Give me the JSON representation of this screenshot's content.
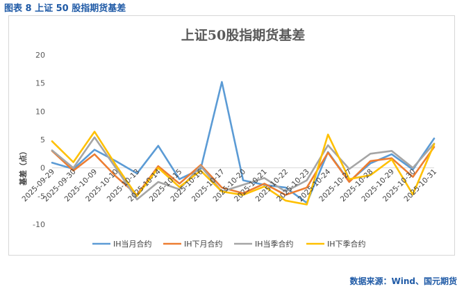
{
  "figure_caption": "图表 8  上证 50 股指期货基差",
  "source": "数据来源：Wind、国元期货",
  "chart_data": {
    "type": "line",
    "title": "上证50股指期货基差",
    "xlabel": "",
    "ylabel": "基差（点）",
    "ylim": [
      -10,
      20
    ],
    "yticks": [
      -10,
      -5,
      0,
      5,
      10,
      15,
      20
    ],
    "grid": false,
    "legend_position": "bottom",
    "categories": [
      "2025-09-29",
      "2025-09-30",
      "2025-10-09",
      "2025-10-10",
      "2025-10-13",
      "2025-10-14",
      "2025-10-15",
      "2025-10-16",
      "2025-10-17",
      "2025-10-20",
      "2025-10-21",
      "2025-10-22",
      "2025-10-23",
      "2025-10-24",
      "2025-10-27",
      "2025-10-28",
      "2025-10-29",
      "2025-10-30",
      "2025-10-31"
    ],
    "series": [
      {
        "name": "IH当月合约",
        "color": "#5b9bd5",
        "values": [
          0.9,
          -0.2,
          3.2,
          1.2,
          -1.0,
          3.9,
          -2.0,
          -0.2,
          15.2,
          -2.2,
          -3.0,
          -3.5,
          -6.2,
          2.8,
          -2.4,
          0.8,
          2.4,
          -0.3,
          5.2
        ]
      },
      {
        "name": "IH下月合约",
        "color": "#ed7d31",
        "values": [
          3.0,
          -0.5,
          2.4,
          -1.5,
          -4.8,
          0.3,
          -2.8,
          0.5,
          -3.5,
          -4.5,
          -2.8,
          -4.8,
          -3.5,
          2.7,
          -2.5,
          1.2,
          1.7,
          -1.6,
          3.7
        ]
      },
      {
        "name": "IH当季合约",
        "color": "#a5a5a5",
        "values": [
          3.1,
          0.0,
          5.4,
          0.0,
          -5.6,
          -2.5,
          -3.8,
          0.3,
          -4.2,
          -3.0,
          -1.8,
          -4.2,
          -2.2,
          4.0,
          -0.2,
          2.5,
          3.0,
          0.0,
          4.3
        ]
      },
      {
        "name": "IH下季合约",
        "color": "#ffc000",
        "values": [
          4.7,
          1.0,
          6.4,
          0.5,
          -5.0,
          0.0,
          -3.4,
          -0.5,
          -4.2,
          -4.8,
          -3.3,
          -5.8,
          -6.5,
          5.9,
          -2.0,
          -1.3,
          1.5,
          -4.7,
          4.2
        ]
      }
    ]
  }
}
